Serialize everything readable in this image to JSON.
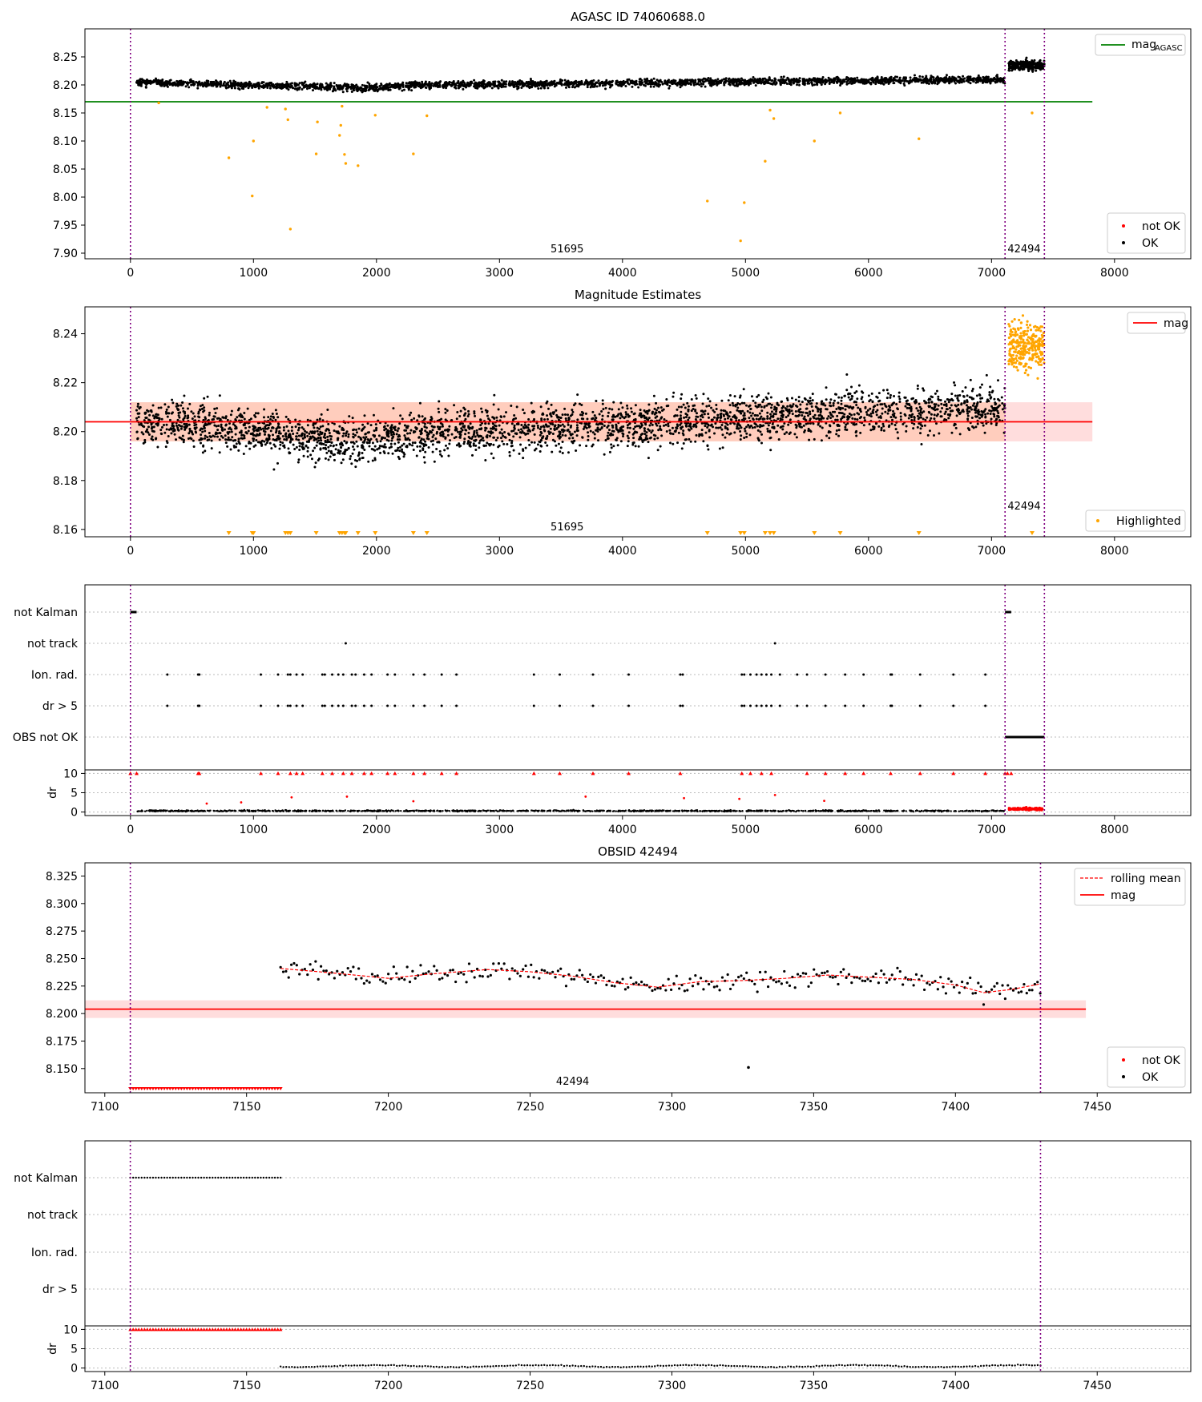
{
  "figure": {
    "panels": [
      {
        "title": "AGASC ID 74060688.0",
        "obsid_labels": [
          "51695",
          "42494"
        ],
        "legend": [
          "mag_AGASC",
          "not OK",
          "OK"
        ]
      },
      {
        "title": "Magnitude Estimates",
        "obsid_labels": [
          "51695",
          "42494"
        ],
        "legend": [
          "mag",
          "Highlighted"
        ]
      },
      {
        "title": "",
        "flag_labels": [
          "not Kalman",
          "not track",
          "Ion. rad.",
          "dr > 5",
          "OBS not OK"
        ],
        "dr_label": "dr"
      },
      {
        "title": "OBSID 42494",
        "obsid_labels": [
          "42494"
        ],
        "legend": [
          "rolling mean",
          "mag",
          "not OK",
          "OK"
        ]
      },
      {
        "title": "",
        "flag_labels": [
          "not Kalman",
          "not track",
          "Ion. rad.",
          "dr > 5"
        ],
        "dr_label": "dr"
      }
    ]
  },
  "chart_data": [
    {
      "type": "scatter",
      "title": "AGASC ID 74060688.0",
      "xlim": [
        -370,
        8620
      ],
      "ylim": [
        7.89,
        8.3
      ],
      "xticks": [
        0,
        1000,
        2000,
        3000,
        4000,
        5000,
        6000,
        7000,
        8000
      ],
      "yticks": [
        7.9,
        7.95,
        8.0,
        8.05,
        8.1,
        8.15,
        8.2,
        8.25
      ],
      "mag_agasc": 8.17,
      "obsid_boundaries": [
        0,
        7110,
        7430
      ],
      "obsid_labels": [
        {
          "text": "51695",
          "x": 3550
        },
        {
          "text": "42494",
          "x": 7265
        }
      ],
      "series": [
        {
          "name": "OK",
          "color": "#000000",
          "trend_points": [
            [
              50,
              8.205
            ],
            [
              1000,
              8.2
            ],
            [
              1900,
              8.195
            ],
            [
              2400,
              8.2
            ],
            [
              4000,
              8.203
            ],
            [
              5500,
              8.207
            ],
            [
              7100,
              8.21
            ]
          ],
          "end_segment": {
            "x": [
              7140,
              7430
            ],
            "y": 8.235
          }
        },
        {
          "name": "not OK",
          "color": "#ff0000",
          "values": []
        },
        {
          "name": "Highlighted",
          "color": "#ffa500",
          "values": [
            [
              230,
              8.168
            ],
            [
              800,
              8.07
            ],
            [
              990,
              8.002
            ],
            [
              1000,
              8.1
            ],
            [
              1110,
              8.16
            ],
            [
              1260,
              8.157
            ],
            [
              1280,
              8.138
            ],
            [
              1300,
              7.943
            ],
            [
              1510,
              8.077
            ],
            [
              1520,
              8.134
            ],
            [
              1700,
              8.11
            ],
            [
              1710,
              8.128
            ],
            [
              1720,
              8.162
            ],
            [
              1740,
              8.076
            ],
            [
              1750,
              8.06
            ],
            [
              1850,
              8.056
            ],
            [
              1990,
              8.146
            ],
            [
              2300,
              8.077
            ],
            [
              2410,
              8.145
            ],
            [
              4690,
              7.993
            ],
            [
              4960,
              7.922
            ],
            [
              4990,
              7.99
            ],
            [
              5160,
              8.064
            ],
            [
              5200,
              8.155
            ],
            [
              5230,
              8.14
            ],
            [
              5560,
              8.1
            ],
            [
              5770,
              8.15
            ],
            [
              6410,
              8.104
            ],
            [
              7330,
              8.15
            ]
          ]
        }
      ],
      "legend": [
        "mag_AGASC",
        "not OK",
        "OK"
      ]
    },
    {
      "type": "scatter",
      "title": "Magnitude Estimates",
      "xlim": [
        -370,
        8620
      ],
      "ylim": [
        8.157,
        8.251
      ],
      "xticks": [
        0,
        1000,
        2000,
        3000,
        4000,
        5000,
        6000,
        7000,
        8000
      ],
      "yticks": [
        8.16,
        8.18,
        8.2,
        8.22,
        8.24
      ],
      "mag": 8.204,
      "mag_band": [
        8.196,
        8.212
      ],
      "obsid_boundaries": [
        0,
        7110,
        7430
      ],
      "obsid_labels": [
        {
          "text": "51695",
          "x": 3550
        },
        {
          "text": "42494",
          "x": 7265
        }
      ],
      "series": [
        {
          "name": "OK",
          "color": "#000000"
        },
        {
          "name": "Highlighted",
          "color": "#ffa500",
          "clipped_low_x": [
            800,
            990,
            1000,
            1260,
            1280,
            1300,
            1510,
            1700,
            1720,
            1740,
            1750,
            1850,
            1990,
            2300,
            2410,
            4690,
            4960,
            4990,
            5160,
            5200,
            5230,
            5560,
            5770,
            6410,
            7330
          ]
        }
      ],
      "legend": [
        "mag",
        "Highlighted"
      ]
    },
    {
      "type": "scatter",
      "title": "",
      "xlim": [
        -370,
        8620
      ],
      "xticks": [
        0,
        1000,
        2000,
        3000,
        4000,
        5000,
        6000,
        7000,
        8000
      ],
      "flag_categories": [
        "not Kalman",
        "not track",
        "Ion. rad.",
        "dr > 5",
        "OBS not OK"
      ],
      "flags": {
        "not Kalman": [
          [
            0,
            50
          ],
          [
            7110,
            7160
          ]
        ],
        "not track": [
          1750,
          5240
        ],
        "Ion. rad.": [
          300,
          550,
          560,
          1060,
          1200,
          1280,
          1300,
          1350,
          1400,
          1560,
          1580,
          1640,
          1690,
          1730,
          1800,
          1830,
          1900,
          1960,
          2090,
          2150,
          2300,
          2390,
          2530,
          2650,
          3280,
          3490,
          3760,
          4050,
          4470,
          4490,
          4970,
          4990,
          5040,
          5090,
          5130,
          5170,
          5210,
          5280,
          5420,
          5500,
          5650,
          5810,
          5960,
          6180,
          6190,
          6420,
          6690,
          6950
        ],
        "dr > 5": [
          300,
          550,
          560,
          1060,
          1200,
          1280,
          1300,
          1350,
          1400,
          1560,
          1580,
          1640,
          1690,
          1730,
          1800,
          1830,
          1900,
          1960,
          2090,
          2150,
          2300,
          2390,
          2530,
          2650,
          3280,
          3490,
          3760,
          4050,
          4470,
          4490,
          4970,
          4990,
          5040,
          5090,
          5130,
          5170,
          5210,
          5280,
          5420,
          5500,
          5650,
          5810,
          5960,
          6180,
          6190,
          6420,
          6690,
          6950
        ],
        "OBS not OK": [
          [
            7110,
            7430
          ]
        ]
      },
      "dr": {
        "ylim": [
          -0.5,
          10.5
        ],
        "yticks": [
          0,
          5,
          10
        ],
        "baseline": 0.3,
        "spikes": [
          [
            620,
            2.2
          ],
          [
            900,
            2.5
          ],
          [
            1310,
            3.8
          ],
          [
            1760,
            4.0
          ],
          [
            2300,
            2.8
          ],
          [
            3700,
            4.0
          ],
          [
            4500,
            3.6
          ],
          [
            4950,
            3.4
          ],
          [
            5240,
            4.4
          ],
          [
            5640,
            2.9
          ]
        ],
        "clipped_at_10_x": [
          0,
          50,
          550,
          560,
          1060,
          1200,
          1300,
          1350,
          1400,
          1560,
          1640,
          1730,
          1800,
          1900,
          1960,
          2090,
          2150,
          2300,
          2390,
          2530,
          2650,
          3280,
          3490,
          3760,
          4050,
          4470,
          4970,
          5040,
          5130,
          5210,
          5500,
          5650,
          5810,
          5960,
          6180,
          6420,
          6690,
          6950,
          7110,
          7130,
          7160
        ],
        "red_segment": {
          "x": [
            7140,
            7430
          ],
          "y": 0.8
        }
      }
    },
    {
      "type": "line",
      "title": "OBSID 42494",
      "xlim": [
        7093,
        7483
      ],
      "ylim": [
        8.128,
        8.337
      ],
      "xticks": [
        7100,
        7150,
        7200,
        7250,
        7300,
        7350,
        7400,
        7450
      ],
      "yticks": [
        8.15,
        8.175,
        8.2,
        8.225,
        8.25,
        8.275,
        8.3,
        8.325
      ],
      "mag": 8.204,
      "mag_band": [
        8.196,
        8.212
      ],
      "obsid_boundaries": [
        7109,
        7430
      ],
      "obsid_labels": [
        {
          "text": "42494",
          "x": 7265
        }
      ],
      "rolling_mean": {
        "x": [
          7162,
          7180,
          7200,
          7215,
          7225,
          7235,
          7250,
          7265,
          7280,
          7295,
          7310,
          7325,
          7340,
          7355,
          7370,
          7385,
          7400,
          7410,
          7420,
          7430
        ],
        "y": [
          8.241,
          8.237,
          8.232,
          8.236,
          8.238,
          8.24,
          8.238,
          8.234,
          8.228,
          8.224,
          8.229,
          8.23,
          8.232,
          8.235,
          8.233,
          8.231,
          8.226,
          8.219,
          8.222,
          8.227
        ]
      },
      "outlier": [
        7327,
        8.151
      ],
      "clipped_low_x_range": [
        7109,
        7162
      ],
      "legend": [
        "rolling mean",
        "mag",
        "not OK",
        "OK"
      ]
    },
    {
      "type": "scatter",
      "title": "",
      "xlim": [
        7093,
        7483
      ],
      "xticks": [
        7100,
        7150,
        7200,
        7250,
        7300,
        7350,
        7400,
        7450
      ],
      "flag_categories": [
        "not Kalman",
        "not track",
        "Ion. rad.",
        "dr > 5"
      ],
      "flags": {
        "not Kalman": [
          [
            7109,
            7162
          ]
        ]
      },
      "dr": {
        "ylim": [
          -0.5,
          10.5
        ],
        "yticks": [
          0,
          5,
          10
        ],
        "clipped_at_10_x_range": [
          7109,
          7162
        ],
        "baseline_x_range": [
          7162,
          7430
        ],
        "baseline": 0.5
      }
    }
  ]
}
